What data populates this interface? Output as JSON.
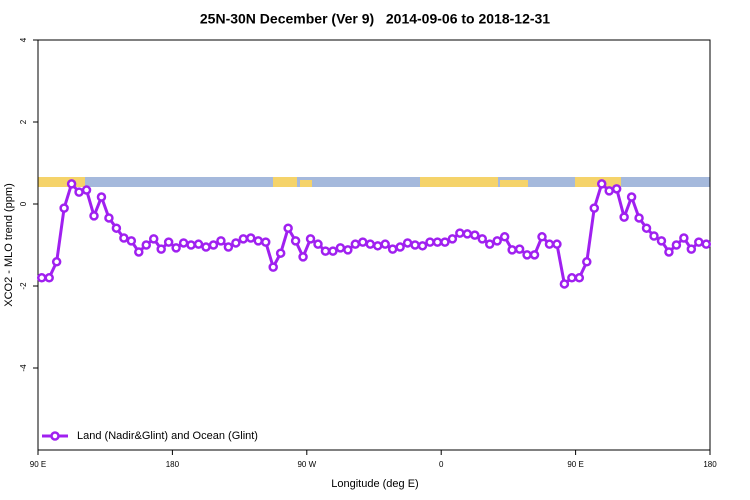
{
  "chart_data": {
    "type": "line",
    "title": "25N-30N December (Ver 9)   2014-09-06 to 2018-12-31",
    "x_label": "Longitude (deg E)",
    "y_label": "XCO2 - MLO trend (ppm)",
    "xlim": [
      90,
      540
    ],
    "ylim": [
      -6,
      4
    ],
    "xticks": [
      {
        "value": 90,
        "label": "90 E"
      },
      180,
      {
        "value": 270,
        "label": "90 W"
      },
      {
        "value": 360,
        "label": "0"
      },
      {
        "value": 450,
        "label": "90 E"
      },
      {
        "value": 540,
        "label": "180"
      }
    ],
    "yticks": [
      -4,
      -2,
      0,
      2,
      4
    ],
    "legend": "bottom left",
    "x": [
      92.5,
      97.5,
      102.5,
      107.5,
      112.5,
      117.5,
      122.5,
      127.5,
      132.5,
      137.5,
      142.5,
      147.5,
      152.5,
      157.5,
      162.5,
      167.5,
      172.5,
      177.5,
      182.5,
      187.5,
      192.5,
      197.5,
      202.5,
      207.5,
      212.5,
      217.5,
      222.5,
      227.5,
      232.5,
      237.5,
      242.5,
      247.5,
      252.5,
      257.5,
      262.5,
      267.5,
      272.5,
      277.5,
      282.5,
      287.5,
      292.5,
      297.5,
      302.5,
      307.5,
      312.5,
      317.5,
      322.5,
      327.5,
      332.5,
      337.5,
      342.5,
      347.5,
      352.5,
      357.5,
      362.5,
      367.5,
      372.5,
      377.5,
      382.5,
      387.5,
      392.5,
      397.5,
      402.5,
      407.5,
      412.5,
      417.5,
      422.5,
      427.5,
      432.5,
      437.5,
      442.5,
      447.5,
      452.5,
      457.5,
      462.5,
      467.5,
      472.5,
      477.5,
      482.5,
      487.5,
      492.5,
      497.5,
      502.5,
      507.5,
      512.5,
      517.5,
      522.5,
      527.5,
      532.5,
      537.5
    ],
    "series": [
      {
        "name": "Land (Nadir&Glint) and Ocean (Glint)",
        "color": "#a020f0",
        "values": [
          -1.8,
          -1.8,
          -1.41,
          -0.1,
          0.49,
          0.29,
          0.34,
          -0.29,
          0.17,
          -0.34,
          -0.59,
          -0.83,
          -0.9,
          -1.17,
          -1.0,
          -0.85,
          -1.1,
          -0.93,
          -1.07,
          -0.95,
          -1.0,
          -0.98,
          -1.05,
          -1.0,
          -0.9,
          -1.05,
          -0.95,
          -0.85,
          -0.83,
          -0.9,
          -0.93,
          -1.54,
          -1.2,
          -0.59,
          -0.9,
          -1.29,
          -0.85,
          -0.98,
          -1.15,
          -1.15,
          -1.07,
          -1.12,
          -0.98,
          -0.93,
          -0.98,
          -1.02,
          -0.98,
          -1.1,
          -1.05,
          -0.95,
          -1.0,
          -1.02,
          -0.93,
          -0.93,
          -0.93,
          -0.85,
          -0.71,
          -0.73,
          -0.76,
          -0.85,
          -0.98,
          -0.9,
          -0.8,
          -1.12,
          -1.1,
          -1.24,
          -1.24,
          -0.8,
          -0.98,
          -0.98,
          -1.95,
          -1.8,
          -1.8,
          -1.41,
          -0.1,
          0.49,
          0.32,
          0.37,
          -0.32,
          0.17,
          -0.34,
          -0.59,
          -0.78,
          -0.9,
          -1.17,
          -1.0,
          -0.83,
          -1.1,
          -0.93,
          -0.98
        ]
      }
    ]
  }
}
